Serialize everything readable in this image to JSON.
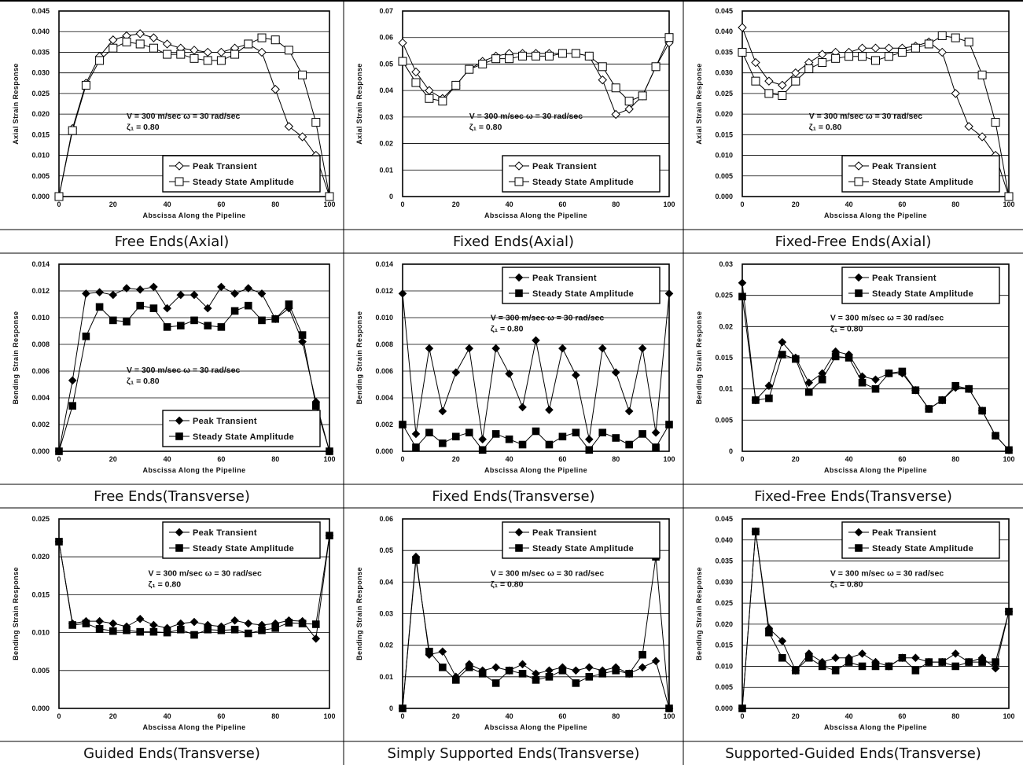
{
  "common": {
    "xlabel": "Abscissa Along the Pipeline",
    "annotation_line1": "V = 300  m/sec  ω = 30 rad/sec",
    "annotation_line2": "ζ₁ = 0.80",
    "legend_peak": "Peak Transient",
    "legend_steady": "Steady State Amplitude"
  },
  "chart_data": [
    {
      "type": "line",
      "caption": "Free Ends(Axial)",
      "ylabel": "Axial Strain Response",
      "xlim": [
        0,
        100
      ],
      "ylim": [
        0,
        0.045
      ],
      "yticks": [
        "0.000",
        "0.005",
        "0.010",
        "0.015",
        "0.020",
        "0.025",
        "0.030",
        "0.035",
        "0.040",
        "0.045"
      ],
      "xticks": [
        "0",
        "20",
        "40",
        "60",
        "80",
        "100"
      ],
      "marker_style": "open",
      "legend_position": "bottom-right",
      "x": [
        0,
        5,
        10,
        15,
        20,
        25,
        30,
        35,
        40,
        45,
        50,
        55,
        60,
        65,
        70,
        75,
        80,
        85,
        90,
        95,
        100
      ],
      "series": [
        {
          "name": "Peak Transient",
          "marker": "diamond",
          "values": [
            0.0,
            0.0165,
            0.0275,
            0.034,
            0.038,
            0.039,
            0.0395,
            0.0385,
            0.037,
            0.036,
            0.0355,
            0.035,
            0.035,
            0.036,
            0.037,
            0.035,
            0.026,
            0.017,
            0.0145,
            0.01,
            0.0
          ]
        },
        {
          "name": "Steady State Amplitude",
          "marker": "square",
          "values": [
            0.0,
            0.016,
            0.027,
            0.033,
            0.036,
            0.0375,
            0.037,
            0.036,
            0.0345,
            0.0345,
            0.0335,
            0.033,
            0.033,
            0.0345,
            0.037,
            0.0385,
            0.038,
            0.0355,
            0.0295,
            0.018,
            0.0
          ]
        }
      ]
    },
    {
      "type": "line",
      "caption": "Fixed Ends(Axial)",
      "ylabel": "Axial Strain Response",
      "xlim": [
        0,
        100
      ],
      "ylim": [
        0,
        0.07
      ],
      "yticks": [
        "0",
        "0.01",
        "0.02",
        "0.03",
        "0.04",
        "0.05",
        "0.06",
        "0.07"
      ],
      "xticks": [
        "0",
        "20",
        "40",
        "60",
        "80",
        "100"
      ],
      "marker_style": "open",
      "legend_position": "bottom-right",
      "x": [
        0,
        5,
        10,
        15,
        20,
        25,
        30,
        35,
        40,
        45,
        50,
        55,
        60,
        65,
        70,
        75,
        80,
        85,
        90,
        95,
        100
      ],
      "series": [
        {
          "name": "Peak Transient",
          "marker": "diamond",
          "values": [
            0.058,
            0.047,
            0.04,
            0.037,
            0.042,
            0.048,
            0.051,
            0.053,
            0.054,
            0.054,
            0.054,
            0.054,
            0.054,
            0.054,
            0.053,
            0.044,
            0.031,
            0.033,
            0.038,
            0.049,
            0.058
          ]
        },
        {
          "name": "Steady State Amplitude",
          "marker": "square",
          "values": [
            0.051,
            0.043,
            0.037,
            0.036,
            0.042,
            0.048,
            0.05,
            0.052,
            0.052,
            0.053,
            0.053,
            0.053,
            0.054,
            0.054,
            0.053,
            0.049,
            0.041,
            0.036,
            0.038,
            0.049,
            0.06
          ]
        }
      ]
    },
    {
      "type": "line",
      "caption": "Fixed-Free Ends(Axial)",
      "ylabel": "Axial Strain Response",
      "xlim": [
        0,
        100
      ],
      "ylim": [
        0,
        0.045
      ],
      "yticks": [
        "0.000",
        "0.005",
        "0.010",
        "0.015",
        "0.020",
        "0.025",
        "0.030",
        "0.035",
        "0.040",
        "0.045"
      ],
      "xticks": [
        "0",
        "20",
        "40",
        "60",
        "80",
        "100"
      ],
      "marker_style": "open",
      "legend_position": "bottom-right",
      "x": [
        0,
        5,
        10,
        15,
        20,
        25,
        30,
        35,
        40,
        45,
        50,
        55,
        60,
        65,
        70,
        75,
        80,
        85,
        90,
        95,
        100
      ],
      "series": [
        {
          "name": "Peak Transient",
          "marker": "diamond",
          "values": [
            0.041,
            0.0325,
            0.028,
            0.027,
            0.03,
            0.0325,
            0.0345,
            0.035,
            0.035,
            0.036,
            0.036,
            0.036,
            0.036,
            0.0365,
            0.0375,
            0.035,
            0.025,
            0.017,
            0.0145,
            0.01,
            0.0
          ]
        },
        {
          "name": "Steady State Amplitude",
          "marker": "square",
          "values": [
            0.035,
            0.028,
            0.025,
            0.0245,
            0.028,
            0.031,
            0.0325,
            0.0335,
            0.034,
            0.034,
            0.033,
            0.034,
            0.035,
            0.036,
            0.037,
            0.039,
            0.0385,
            0.0375,
            0.0295,
            0.018,
            0.0
          ]
        }
      ]
    },
    {
      "type": "line",
      "caption": "Free Ends(Transverse)",
      "ylabel": "Bending Strain Response",
      "xlim": [
        0,
        100
      ],
      "ylim": [
        0,
        0.014
      ],
      "yticks": [
        "0.000",
        "0.002",
        "0.004",
        "0.006",
        "0.008",
        "0.010",
        "0.012",
        "0.014"
      ],
      "xticks": [
        "0",
        "20",
        "40",
        "60",
        "80",
        "100"
      ],
      "marker_style": "filled",
      "legend_position": "bottom-right",
      "x": [
        0,
        5,
        10,
        15,
        20,
        25,
        30,
        35,
        40,
        45,
        50,
        55,
        60,
        65,
        70,
        75,
        80,
        85,
        90,
        95,
        100
      ],
      "series": [
        {
          "name": "Peak Transient",
          "marker": "diamond",
          "values": [
            0.0,
            0.0053,
            0.0118,
            0.0119,
            0.0117,
            0.0122,
            0.0121,
            0.0123,
            0.0107,
            0.0117,
            0.0117,
            0.0107,
            0.0123,
            0.0118,
            0.0122,
            0.0118,
            0.0099,
            0.0107,
            0.0082,
            0.0037,
            0.0
          ]
        },
        {
          "name": "Steady State Amplitude",
          "marker": "square",
          "values": [
            0.0,
            0.0034,
            0.0086,
            0.0108,
            0.0098,
            0.0097,
            0.0109,
            0.0107,
            0.0093,
            0.0094,
            0.0098,
            0.0094,
            0.0093,
            0.0105,
            0.0109,
            0.0098,
            0.0099,
            0.011,
            0.0087,
            0.0034,
            0.0
          ]
        }
      ]
    },
    {
      "type": "line",
      "caption": "Fixed Ends(Transverse)",
      "ylabel": "Bending Strain Response",
      "xlim": [
        0,
        100
      ],
      "ylim": [
        0,
        0.014
      ],
      "yticks": [
        "0.000",
        "0.002",
        "0.004",
        "0.006",
        "0.008",
        "0.010",
        "0.012",
        "0.014"
      ],
      "xticks": [
        "0",
        "20",
        "40",
        "60",
        "80",
        "100"
      ],
      "marker_style": "filled",
      "legend_position": "top-right",
      "x": [
        0,
        5,
        10,
        15,
        20,
        25,
        30,
        35,
        40,
        45,
        50,
        55,
        60,
        65,
        70,
        75,
        80,
        85,
        90,
        95,
        100
      ],
      "series": [
        {
          "name": "Peak Transient",
          "marker": "diamond",
          "values": [
            0.0118,
            0.0013,
            0.0077,
            0.003,
            0.0059,
            0.0077,
            0.0009,
            0.0077,
            0.0058,
            0.0033,
            0.0083,
            0.0031,
            0.0077,
            0.0057,
            0.0009,
            0.0077,
            0.0059,
            0.003,
            0.0077,
            0.0014,
            0.0118
          ]
        },
        {
          "name": "Steady State Amplitude",
          "marker": "square",
          "values": [
            0.002,
            0.0003,
            0.0014,
            0.0006,
            0.0011,
            0.0014,
            0.0001,
            0.0013,
            0.0009,
            0.0005,
            0.0015,
            0.0005,
            0.0011,
            0.0014,
            0.0001,
            0.0014,
            0.001,
            0.0005,
            0.0013,
            0.0003,
            0.002
          ]
        }
      ]
    },
    {
      "type": "line",
      "caption": "Fixed-Free Ends(Transverse)",
      "ylabel": "Bending Strain Response",
      "xlim": [
        0,
        100
      ],
      "ylim": [
        0,
        0.03
      ],
      "yticks": [
        "0",
        "0.005",
        "0.01",
        "0.015",
        "0.02",
        "0.025",
        "0.03"
      ],
      "xticks": [
        "0",
        "20",
        "40",
        "60",
        "80",
        "100"
      ],
      "marker_style": "filled",
      "legend_position": "top-right",
      "x": [
        0,
        5,
        10,
        15,
        20,
        25,
        30,
        35,
        40,
        45,
        50,
        55,
        60,
        65,
        70,
        75,
        80,
        85,
        90,
        95,
        100
      ],
      "series": [
        {
          "name": "Peak Transient",
          "marker": "diamond",
          "values": [
            0.027,
            0.0082,
            0.0105,
            0.0175,
            0.015,
            0.011,
            0.0125,
            0.016,
            0.0155,
            0.012,
            0.0115,
            0.0125,
            0.0125,
            0.0098,
            0.0068,
            0.0082,
            0.0102,
            0.01,
            0.0065,
            0.0025,
            0.0002
          ]
        },
        {
          "name": "Steady State Amplitude",
          "marker": "square",
          "values": [
            0.0248,
            0.0082,
            0.0085,
            0.0155,
            0.0148,
            0.0095,
            0.0115,
            0.0152,
            0.015,
            0.011,
            0.01,
            0.0125,
            0.0128,
            0.0098,
            0.0068,
            0.0082,
            0.0105,
            0.01,
            0.0065,
            0.0025,
            0.0002
          ]
        }
      ]
    },
    {
      "type": "line",
      "caption": "Guided Ends(Transverse)",
      "ylabel": "Bending Strain Response",
      "xlim": [
        0,
        100
      ],
      "ylim": [
        0,
        0.025
      ],
      "yticks": [
        "0.000",
        "0.005",
        "0.010",
        "0.015",
        "0.020",
        "0.025"
      ],
      "xticks": [
        "0",
        "20",
        "40",
        "60",
        "80",
        "100"
      ],
      "marker_style": "filled",
      "legend_position": "top-right",
      "x": [
        0,
        5,
        10,
        15,
        20,
        25,
        30,
        35,
        40,
        45,
        50,
        55,
        60,
        65,
        70,
        75,
        80,
        85,
        90,
        95,
        100
      ],
      "series": [
        {
          "name": "Peak Transient",
          "marker": "diamond",
          "values": [
            0.022,
            0.0112,
            0.0115,
            0.0115,
            0.0112,
            0.0108,
            0.0118,
            0.011,
            0.0106,
            0.0112,
            0.0114,
            0.011,
            0.0108,
            0.0116,
            0.0112,
            0.011,
            0.0112,
            0.0116,
            0.0115,
            0.0092,
            0.0228
          ]
        },
        {
          "name": "Steady State Amplitude",
          "marker": "square",
          "values": [
            0.022,
            0.011,
            0.0112,
            0.0105,
            0.0102,
            0.0103,
            0.0101,
            0.0101,
            0.01,
            0.0104,
            0.0097,
            0.0104,
            0.0103,
            0.0104,
            0.0099,
            0.0103,
            0.0106,
            0.0113,
            0.0112,
            0.0111,
            0.0228
          ]
        }
      ]
    },
    {
      "type": "line",
      "caption": "Simply Supported Ends(Transverse)",
      "ylabel": "Bending Strain Response",
      "xlim": [
        0,
        100
      ],
      "ylim": [
        0,
        0.06
      ],
      "yticks": [
        "0",
        "0.01",
        "0.02",
        "0.03",
        "0.04",
        "0.05",
        "0.06"
      ],
      "xticks": [
        "0",
        "20",
        "40",
        "60",
        "80",
        "100"
      ],
      "marker_style": "filled",
      "legend_position": "top-right",
      "x": [
        0,
        5,
        10,
        15,
        20,
        25,
        30,
        35,
        40,
        45,
        50,
        55,
        60,
        65,
        70,
        75,
        80,
        85,
        90,
        95,
        100
      ],
      "series": [
        {
          "name": "Peak Transient",
          "marker": "diamond",
          "values": [
            0.0,
            0.048,
            0.017,
            0.018,
            0.01,
            0.014,
            0.012,
            0.013,
            0.012,
            0.014,
            0.011,
            0.012,
            0.013,
            0.012,
            0.013,
            0.012,
            0.013,
            0.011,
            0.013,
            0.015,
            0.0
          ]
        },
        {
          "name": "Steady State Amplitude",
          "marker": "square",
          "values": [
            0.0,
            0.047,
            0.018,
            0.013,
            0.009,
            0.013,
            0.011,
            0.008,
            0.012,
            0.011,
            0.009,
            0.01,
            0.012,
            0.008,
            0.01,
            0.011,
            0.012,
            0.011,
            0.017,
            0.048,
            0.0
          ]
        }
      ]
    },
    {
      "type": "line",
      "caption": "Supported-Guided Ends(Transverse)",
      "ylabel": "Bending Strain Response",
      "xlim": [
        0,
        100
      ],
      "ylim": [
        0,
        0.045
      ],
      "yticks": [
        "0.000",
        "0.005",
        "0.010",
        "0.015",
        "0.020",
        "0.025",
        "0.030",
        "0.035",
        "0.040",
        "0.045"
      ],
      "xticks": [
        "0",
        "20",
        "40",
        "60",
        "80",
        "100"
      ],
      "marker_style": "filled",
      "legend_position": "top-right",
      "x": [
        0,
        5,
        10,
        15,
        20,
        25,
        30,
        35,
        40,
        45,
        50,
        55,
        60,
        65,
        70,
        75,
        80,
        85,
        90,
        95,
        100
      ],
      "series": [
        {
          "name": "Peak Transient",
          "marker": "diamond",
          "values": [
            0.0,
            0.042,
            0.019,
            0.016,
            0.009,
            0.013,
            0.011,
            0.012,
            0.012,
            0.013,
            0.011,
            0.01,
            0.012,
            0.012,
            0.011,
            0.011,
            0.013,
            0.011,
            0.012,
            0.0095,
            0.023
          ]
        },
        {
          "name": "Steady State Amplitude",
          "marker": "square",
          "values": [
            0.0,
            0.042,
            0.018,
            0.012,
            0.009,
            0.012,
            0.01,
            0.009,
            0.011,
            0.01,
            0.01,
            0.01,
            0.012,
            0.009,
            0.011,
            0.011,
            0.01,
            0.011,
            0.011,
            0.011,
            0.023
          ]
        }
      ]
    }
  ]
}
